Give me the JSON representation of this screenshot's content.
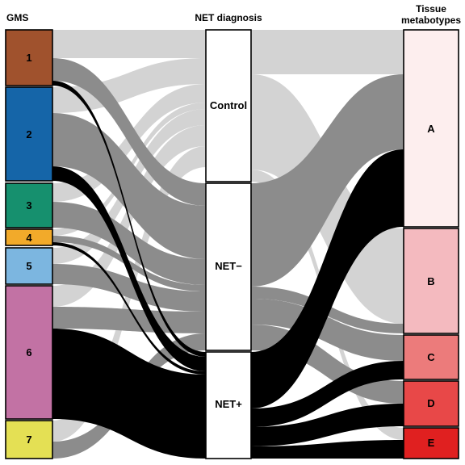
{
  "columns": {
    "gms_title": "GMS",
    "net_title": "NET diagnosis",
    "tissue_title_line1": "Tissue",
    "tissue_title_line2": "metabotypes"
  },
  "gms_nodes": [
    {
      "label": "1",
      "color": "#A0522D"
    },
    {
      "label": "2",
      "color": "#1565A8"
    },
    {
      "label": "3",
      "color": "#16906E"
    },
    {
      "label": "4",
      "color": "#F2AA2A"
    },
    {
      "label": "5",
      "color": "#7CB6E0"
    },
    {
      "label": "6",
      "color": "#C272A4"
    },
    {
      "label": "7",
      "color": "#E4E054"
    }
  ],
  "net_nodes": [
    {
      "label": "Control",
      "color": "#FFFFFF"
    },
    {
      "label": "NET−",
      "color": "#FFFFFF"
    },
    {
      "label": "NET+",
      "color": "#FFFFFF"
    }
  ],
  "tissue_nodes": [
    {
      "label": "A",
      "color": "#FDEEEE"
    },
    {
      "label": "B",
      "color": "#F4BABF"
    },
    {
      "label": "C",
      "color": "#EC7B7B"
    },
    {
      "label": "D",
      "color": "#E84848"
    },
    {
      "label": "E",
      "color": "#E02020"
    }
  ],
  "flow_colors": {
    "control": "#D3D3D3",
    "net_minus": "#8C8C8C",
    "net_plus": "#000000"
  }
}
